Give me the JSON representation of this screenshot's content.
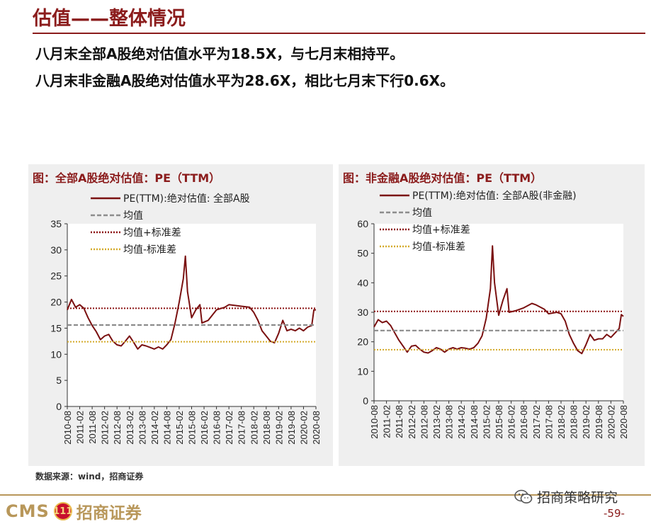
{
  "page": {
    "title": "估值——整体情况",
    "summary": [
      "八月末全部A股绝对估值水平为18.5X，与七月末相持平。",
      "八月末非金融A股绝对估值水平为28.6X，相比七月末下行0.6X。"
    ],
    "source": "数据来源：wind，招商证券",
    "footer": {
      "logo_text": "CMS",
      "logo_badge": "111",
      "logo_cn": "招商证券",
      "wechat": "招商策略研究",
      "page_number": "-59-"
    }
  },
  "colors": {
    "brand": "#8b1c1c",
    "series": "#7a1010",
    "mean": "#8c8c8c",
    "upper": "#8b1010",
    "lower": "#d4aa2a",
    "panel_bg": "#efefef",
    "gold": "#b8975a"
  },
  "chart_data": [
    {
      "type": "line",
      "title": "图：全部A股绝对估值：PE（TTM）",
      "ylim": [
        0,
        35
      ],
      "yticks": [
        0,
        5,
        10,
        15,
        20,
        25,
        30,
        35
      ],
      "xticks": [
        "2010-08",
        "2011-02",
        "2011-08",
        "2012-02",
        "2012-08",
        "2013-02",
        "2013-08",
        "2014-02",
        "2014-08",
        "2015-02",
        "2015-08",
        "2016-02",
        "2016-08",
        "2017-02",
        "2017-08",
        "2018-02",
        "2018-08",
        "2019-02",
        "2019-08",
        "2020-02",
        "2020-08"
      ],
      "series": [
        {
          "name": "PE(TTM):绝对估值: 全部A股",
          "style": "solid",
          "points": [
            [
              "2010-08",
              18.5
            ],
            [
              "2010-10",
              20.5
            ],
            [
              "2010-12",
              19.0
            ],
            [
              "2011-02",
              19.5
            ],
            [
              "2011-04",
              18.8
            ],
            [
              "2011-06",
              17.0
            ],
            [
              "2011-08",
              15.5
            ],
            [
              "2011-10",
              14.3
            ],
            [
              "2011-12",
              12.8
            ],
            [
              "2012-02",
              13.5
            ],
            [
              "2012-04",
              13.8
            ],
            [
              "2012-06",
              12.5
            ],
            [
              "2012-08",
              11.8
            ],
            [
              "2012-10",
              11.6
            ],
            [
              "2012-12",
              12.5
            ],
            [
              "2013-02",
              13.5
            ],
            [
              "2013-04",
              12.3
            ],
            [
              "2013-06",
              11.0
            ],
            [
              "2013-08",
              11.8
            ],
            [
              "2013-10",
              11.6
            ],
            [
              "2013-12",
              11.3
            ],
            [
              "2014-02",
              11.0
            ],
            [
              "2014-04",
              11.4
            ],
            [
              "2014-06",
              11.0
            ],
            [
              "2014-08",
              11.8
            ],
            [
              "2014-10",
              12.8
            ],
            [
              "2014-12",
              16.0
            ],
            [
              "2015-02",
              20.0
            ],
            [
              "2015-04",
              24.5
            ],
            [
              "2015-05",
              28.8
            ],
            [
              "2015-06",
              22.0
            ],
            [
              "2015-08",
              17.0
            ],
            [
              "2015-10",
              18.5
            ],
            [
              "2015-12",
              19.5
            ],
            [
              "2016-01",
              16.0
            ],
            [
              "2016-04",
              16.5
            ],
            [
              "2016-08",
              18.5
            ],
            [
              "2016-12",
              19.0
            ],
            [
              "2017-02",
              19.5
            ],
            [
              "2017-06",
              19.3
            ],
            [
              "2017-08",
              19.2
            ],
            [
              "2017-12",
              19.0
            ],
            [
              "2018-02",
              18.0
            ],
            [
              "2018-04",
              16.5
            ],
            [
              "2018-06",
              14.5
            ],
            [
              "2018-08",
              13.5
            ],
            [
              "2018-10",
              12.5
            ],
            [
              "2018-12",
              12.2
            ],
            [
              "2019-02",
              14.0
            ],
            [
              "2019-04",
              16.5
            ],
            [
              "2019-06",
              14.5
            ],
            [
              "2019-08",
              14.8
            ],
            [
              "2019-10",
              14.5
            ],
            [
              "2019-12",
              15.0
            ],
            [
              "2020-02",
              14.5
            ],
            [
              "2020-04",
              15.2
            ],
            [
              "2020-06",
              15.5
            ],
            [
              "2020-07",
              18.5
            ],
            [
              "2020-08",
              18.5
            ]
          ]
        },
        {
          "name": "均值",
          "style": "dashed",
          "points": [
            [
              "2010-08",
              15.6
            ],
            [
              "2020-08",
              15.6
            ]
          ]
        },
        {
          "name": "均值+标准差",
          "style": "dotted",
          "points": [
            [
              "2010-08",
              18.8
            ],
            [
              "2020-08",
              18.8
            ]
          ]
        },
        {
          "name": "均值-标准差",
          "style": "dotted",
          "points": [
            [
              "2010-08",
              12.4
            ],
            [
              "2020-08",
              12.4
            ]
          ]
        }
      ]
    },
    {
      "type": "line",
      "title": "图：非金融A股绝对估值：PE（TTM）",
      "ylim": [
        0,
        60
      ],
      "yticks": [
        0,
        10,
        20,
        30,
        40,
        50,
        60
      ],
      "xticks": [
        "2010-08",
        "2011-02",
        "2011-08",
        "2012-02",
        "2012-08",
        "2013-02",
        "2013-08",
        "2014-02",
        "2014-08",
        "2015-02",
        "2015-08",
        "2016-02",
        "2016-08",
        "2017-02",
        "2017-08",
        "2018-02",
        "2018-08",
        "2019-02",
        "2019-08",
        "2020-02",
        "2020-08"
      ],
      "series": [
        {
          "name": "PE(TTM):绝对估值: 全部A股(非金融)",
          "style": "solid",
          "points": [
            [
              "2010-08",
              25.0
            ],
            [
              "2010-10",
              27.5
            ],
            [
              "2010-12",
              26.5
            ],
            [
              "2011-02",
              27.0
            ],
            [
              "2011-04",
              25.5
            ],
            [
              "2011-06",
              23.0
            ],
            [
              "2011-08",
              20.5
            ],
            [
              "2011-10",
              18.5
            ],
            [
              "2011-12",
              16.5
            ],
            [
              "2012-02",
              18.5
            ],
            [
              "2012-04",
              18.8
            ],
            [
              "2012-06",
              17.5
            ],
            [
              "2012-08",
              16.5
            ],
            [
              "2012-10",
              16.2
            ],
            [
              "2012-12",
              17.0
            ],
            [
              "2013-02",
              18.0
            ],
            [
              "2013-04",
              17.5
            ],
            [
              "2013-06",
              16.5
            ],
            [
              "2013-08",
              17.5
            ],
            [
              "2013-10",
              18.0
            ],
            [
              "2013-12",
              17.5
            ],
            [
              "2014-02",
              18.0
            ],
            [
              "2014-04",
              17.8
            ],
            [
              "2014-06",
              17.5
            ],
            [
              "2014-08",
              18.0
            ],
            [
              "2014-10",
              19.5
            ],
            [
              "2014-12",
              22.0
            ],
            [
              "2015-02",
              28.0
            ],
            [
              "2015-04",
              38.0
            ],
            [
              "2015-05",
              52.5
            ],
            [
              "2015-06",
              40.0
            ],
            [
              "2015-08",
              29.0
            ],
            [
              "2015-10",
              34.0
            ],
            [
              "2015-12",
              38.0
            ],
            [
              "2016-01",
              30.0
            ],
            [
              "2016-04",
              30.5
            ],
            [
              "2016-08",
              31.5
            ],
            [
              "2016-12",
              33.0
            ],
            [
              "2017-02",
              32.5
            ],
            [
              "2017-06",
              31.0
            ],
            [
              "2017-08",
              29.5
            ],
            [
              "2017-12",
              30.0
            ],
            [
              "2018-02",
              29.5
            ],
            [
              "2018-04",
              27.0
            ],
            [
              "2018-06",
              22.5
            ],
            [
              "2018-08",
              19.5
            ],
            [
              "2018-10",
              17.0
            ],
            [
              "2018-12",
              16.0
            ],
            [
              "2019-02",
              19.0
            ],
            [
              "2019-04",
              22.5
            ],
            [
              "2019-06",
              20.5
            ],
            [
              "2019-08",
              21.0
            ],
            [
              "2019-10",
              21.0
            ],
            [
              "2019-12",
              22.5
            ],
            [
              "2020-02",
              21.5
            ],
            [
              "2020-04",
              23.0
            ],
            [
              "2020-06",
              24.5
            ],
            [
              "2020-07",
              29.2
            ],
            [
              "2020-08",
              28.6
            ]
          ]
        },
        {
          "name": "均值",
          "style": "dashed",
          "points": [
            [
              "2010-08",
              23.8
            ],
            [
              "2020-08",
              23.8
            ]
          ]
        },
        {
          "name": "均值+标准差",
          "style": "dotted",
          "points": [
            [
              "2010-08",
              30.3
            ],
            [
              "2020-08",
              30.3
            ]
          ]
        },
        {
          "name": "均值-标准差",
          "style": "dotted",
          "points": [
            [
              "2010-08",
              17.3
            ],
            [
              "2020-08",
              17.3
            ]
          ]
        }
      ]
    }
  ]
}
